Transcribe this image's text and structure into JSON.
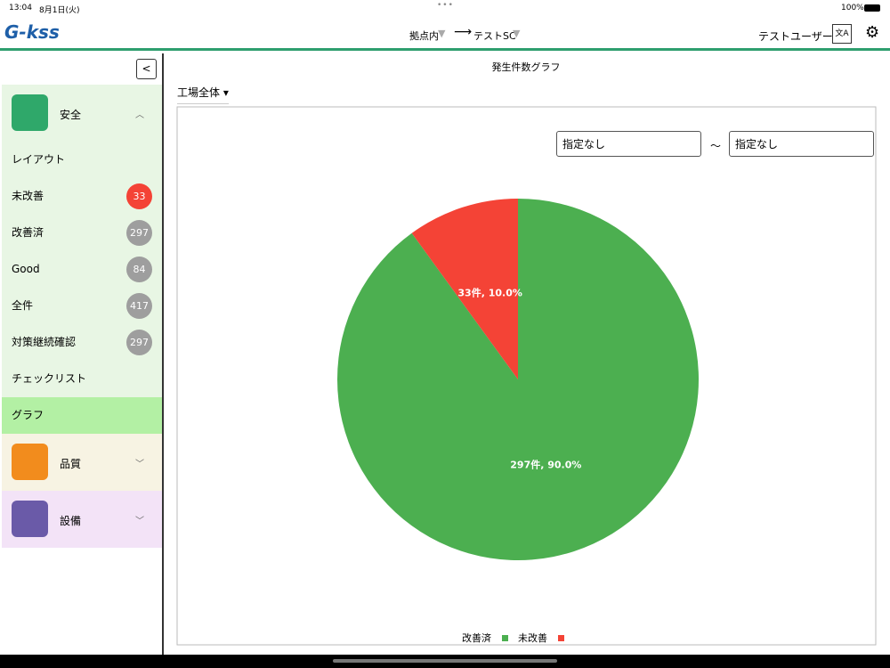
{
  "status_bar": {
    "time": "13:04",
    "date": "8月1日(火)",
    "battery": "100%"
  },
  "header": {
    "logo": "G-kss",
    "route_from": "拠点内",
    "route_to": "テストSC",
    "user": "テストユーザー"
  },
  "sidebar": {
    "sections": [
      {
        "title": "安全",
        "items": [
          {
            "label": "レイアウト"
          },
          {
            "label": "未改善",
            "badge": 33,
            "badge_color": "#f44336"
          },
          {
            "label": "改善済",
            "badge": 297
          },
          {
            "label": "Good",
            "badge": 84
          },
          {
            "label": "全件",
            "badge": 417
          },
          {
            "label": "対策継続確認",
            "badge": 297
          },
          {
            "label": "チェックリスト"
          },
          {
            "label": "グラフ",
            "active": true
          }
        ]
      },
      {
        "title": "品質"
      },
      {
        "title": "設備"
      }
    ]
  },
  "main": {
    "filter": "工場全体",
    "date_from": "指定なし",
    "separator": "～",
    "date_to": "指定なし"
  },
  "chart_data": {
    "type": "pie",
    "title": "発生件数グラフ",
    "categories": [
      "改善済",
      "未改善"
    ],
    "values": [
      297,
      33
    ],
    "value_labels": [
      "297件, 90.0%",
      "33件, 10.0%"
    ],
    "colors": [
      "#4caf50",
      "#f44336"
    ]
  }
}
